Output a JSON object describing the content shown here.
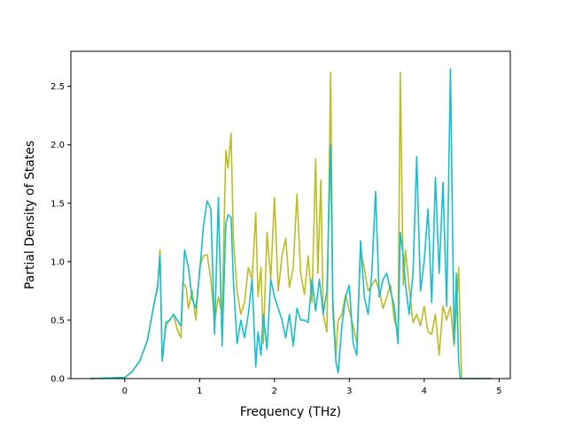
{
  "chart_data": {
    "type": "line",
    "title": "",
    "xlabel": "Frequency (THz)",
    "ylabel": "Partial Density of States",
    "xlim": [
      -0.72,
      5.15
    ],
    "ylim": [
      0,
      2.8
    ],
    "xticks": [
      0,
      1,
      2,
      3,
      4,
      5
    ],
    "yticks": [
      0.0,
      0.5,
      1.0,
      1.5,
      2.0,
      2.5
    ],
    "xtick_labels": [
      "0",
      "1",
      "2",
      "3",
      "4",
      "5"
    ],
    "ytick_labels": [
      "0.0",
      "0.5",
      "1.0",
      "1.5",
      "2.0",
      "2.5"
    ],
    "grid": false,
    "legend": "none",
    "series": [
      {
        "color": "#bcbd22",
        "x": [
          -0.46,
          0.0,
          0.1,
          0.2,
          0.3,
          0.38,
          0.44,
          0.47,
          0.5,
          0.55,
          0.6,
          0.65,
          0.7,
          0.75,
          0.78,
          0.82,
          0.85,
          0.9,
          0.95,
          1.0,
          1.05,
          1.1,
          1.15,
          1.2,
          1.25,
          1.3,
          1.35,
          1.38,
          1.42,
          1.45,
          1.5,
          1.55,
          1.6,
          1.65,
          1.7,
          1.75,
          1.78,
          1.82,
          1.85,
          1.9,
          1.95,
          2.0,
          2.05,
          2.1,
          2.15,
          2.2,
          2.25,
          2.3,
          2.35,
          2.4,
          2.45,
          2.5,
          2.55,
          2.58,
          2.62,
          2.65,
          2.7,
          2.75,
          2.78,
          2.82,
          2.85,
          2.9,
          2.95,
          3.0,
          3.05,
          3.1,
          3.15,
          3.2,
          3.25,
          3.3,
          3.35,
          3.4,
          3.45,
          3.5,
          3.55,
          3.6,
          3.65,
          3.68,
          3.72,
          3.75,
          3.8,
          3.85,
          3.9,
          3.95,
          4.0,
          4.05,
          4.1,
          4.15,
          4.2,
          4.25,
          4.3,
          4.35,
          4.4,
          4.43,
          4.46,
          4.5,
          4.9
        ],
        "y": [
          0.0,
          0.01,
          0.06,
          0.15,
          0.32,
          0.6,
          0.78,
          1.1,
          0.15,
          0.45,
          0.5,
          0.55,
          0.42,
          0.35,
          0.82,
          0.78,
          0.6,
          0.75,
          0.5,
          0.95,
          1.05,
          1.06,
          0.85,
          0.48,
          0.7,
          0.55,
          1.95,
          1.8,
          2.1,
          1.2,
          0.75,
          0.55,
          0.65,
          0.95,
          0.85,
          1.42,
          0.7,
          0.95,
          0.3,
          1.25,
          0.85,
          1.55,
          0.75,
          1.05,
          1.2,
          0.78,
          0.95,
          1.58,
          0.9,
          0.72,
          1.05,
          0.65,
          1.88,
          0.9,
          1.7,
          0.55,
          0.4,
          2.62,
          0.7,
          0.2,
          0.5,
          0.55,
          0.72,
          0.58,
          0.45,
          0.3,
          1.1,
          0.95,
          0.75,
          0.8,
          0.85,
          0.75,
          0.6,
          0.7,
          0.8,
          0.5,
          0.4,
          2.62,
          0.8,
          1.1,
          0.78,
          0.48,
          0.55,
          0.45,
          0.62,
          0.4,
          0.38,
          0.55,
          0.2,
          0.62,
          0.5,
          0.62,
          0.28,
          0.6,
          0.95,
          0.0,
          0.0
        ]
      },
      {
        "color": "#17becf",
        "x": [
          -0.46,
          0.0,
          0.1,
          0.2,
          0.3,
          0.38,
          0.44,
          0.47,
          0.5,
          0.55,
          0.6,
          0.65,
          0.7,
          0.75,
          0.8,
          0.85,
          0.9,
          0.95,
          1.0,
          1.05,
          1.1,
          1.15,
          1.2,
          1.25,
          1.3,
          1.35,
          1.38,
          1.42,
          1.45,
          1.5,
          1.55,
          1.6,
          1.65,
          1.7,
          1.75,
          1.78,
          1.82,
          1.85,
          1.9,
          1.95,
          2.0,
          2.05,
          2.1,
          2.15,
          2.2,
          2.25,
          2.3,
          2.35,
          2.4,
          2.45,
          2.5,
          2.55,
          2.6,
          2.65,
          2.7,
          2.75,
          2.78,
          2.82,
          2.85,
          2.9,
          2.95,
          3.0,
          3.05,
          3.1,
          3.15,
          3.2,
          3.25,
          3.3,
          3.35,
          3.4,
          3.45,
          3.5,
          3.55,
          3.6,
          3.65,
          3.68,
          3.72,
          3.75,
          3.8,
          3.85,
          3.9,
          3.95,
          4.0,
          4.05,
          4.1,
          4.15,
          4.2,
          4.25,
          4.3,
          4.35,
          4.4,
          4.43,
          4.46,
          4.48,
          4.9
        ],
        "y": [
          0.0,
          0.01,
          0.06,
          0.15,
          0.32,
          0.6,
          0.8,
          1.05,
          0.15,
          0.48,
          0.5,
          0.55,
          0.5,
          0.45,
          1.1,
          0.95,
          0.68,
          0.6,
          0.9,
          1.3,
          1.52,
          1.45,
          0.38,
          1.55,
          0.28,
          1.32,
          1.4,
          1.38,
          0.85,
          0.3,
          0.5,
          0.35,
          0.55,
          0.85,
          0.1,
          0.4,
          0.2,
          0.55,
          0.25,
          0.85,
          0.7,
          0.6,
          0.5,
          0.35,
          0.55,
          0.28,
          0.6,
          0.5,
          0.5,
          0.48,
          0.85,
          0.58,
          0.85,
          0.55,
          0.75,
          2.0,
          0.6,
          0.15,
          0.05,
          0.45,
          0.7,
          0.8,
          0.3,
          0.2,
          1.18,
          0.7,
          0.55,
          0.9,
          1.6,
          0.7,
          0.85,
          0.9,
          0.75,
          0.62,
          0.3,
          1.25,
          1.05,
          0.8,
          0.55,
          0.9,
          1.9,
          0.75,
          1.0,
          1.45,
          0.65,
          1.72,
          0.9,
          1.68,
          0.62,
          2.65,
          0.3,
          0.9,
          0.15,
          0.0,
          0.0
        ]
      }
    ]
  }
}
